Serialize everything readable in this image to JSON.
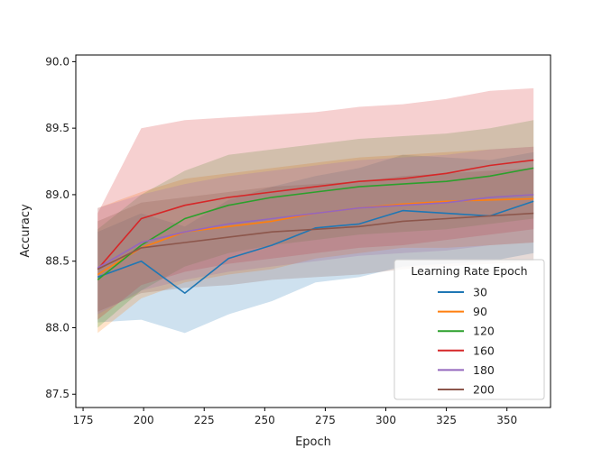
{
  "chart_data": {
    "type": "line",
    "xlabel": "Epoch",
    "ylabel": "Accuracy",
    "xlim": [
      172,
      368
    ],
    "ylim": [
      87.4,
      90.05
    ],
    "xticks": [
      "175",
      "200",
      "225",
      "250",
      "275",
      "300",
      "325",
      "350"
    ],
    "yticks": [
      "87.5",
      "88.0",
      "88.5",
      "89.0",
      "89.5",
      "90.0"
    ],
    "legend": {
      "title": "Learning Rate Epoch",
      "position": "lower-right"
    },
    "x": [
      181,
      199,
      217,
      235,
      253,
      271,
      289,
      307,
      325,
      343,
      361
    ],
    "series": [
      {
        "name": "30",
        "color": "#1f77b4",
        "band_color": "#1f77b4",
        "values": [
          88.38,
          88.5,
          88.26,
          88.52,
          88.62,
          88.75,
          88.78,
          88.88,
          88.86,
          88.84,
          88.95
        ],
        "lower": [
          88.04,
          88.06,
          87.96,
          88.1,
          88.2,
          88.34,
          88.38,
          88.46,
          88.48,
          88.5,
          88.56
        ],
        "upper": [
          88.72,
          88.86,
          88.76,
          88.96,
          89.06,
          89.14,
          89.2,
          89.3,
          89.28,
          89.26,
          89.32
        ]
      },
      {
        "name": "90",
        "color": "#ff7f0e",
        "band_color": "#ff7f0e",
        "values": [
          88.4,
          88.6,
          88.72,
          88.76,
          88.8,
          88.86,
          88.9,
          88.93,
          88.95,
          88.96,
          88.97
        ],
        "lower": [
          87.96,
          88.22,
          88.34,
          88.4,
          88.44,
          88.52,
          88.56,
          88.6,
          88.6,
          88.62,
          88.64
        ],
        "upper": [
          88.9,
          89.02,
          89.12,
          89.16,
          89.2,
          89.24,
          89.28,
          89.3,
          89.32,
          89.34,
          89.36
        ]
      },
      {
        "name": "120",
        "color": "#2ca02c",
        "band_color": "#2ca02c",
        "values": [
          88.36,
          88.62,
          88.82,
          88.92,
          88.98,
          89.02,
          89.06,
          89.08,
          89.1,
          89.14,
          89.2
        ],
        "lower": [
          88.0,
          88.28,
          88.46,
          88.56,
          88.62,
          88.66,
          88.7,
          88.72,
          88.74,
          88.78,
          88.82
        ],
        "upper": [
          88.74,
          89.0,
          89.18,
          89.3,
          89.34,
          89.38,
          89.42,
          89.44,
          89.46,
          89.5,
          89.56
        ]
      },
      {
        "name": "160",
        "color": "#d62728",
        "band_color": "#d62728",
        "values": [
          88.44,
          88.82,
          88.92,
          88.98,
          89.02,
          89.06,
          89.1,
          89.12,
          89.16,
          89.22,
          89.26
        ],
        "lower": [
          88.06,
          88.32,
          88.42,
          88.48,
          88.52,
          88.56,
          88.6,
          88.62,
          88.66,
          88.7,
          88.74
        ],
        "upper": [
          88.86,
          89.5,
          89.56,
          89.58,
          89.6,
          89.62,
          89.66,
          89.68,
          89.72,
          89.78,
          89.8
        ]
      },
      {
        "name": "180",
        "color": "#9467bd",
        "band_color": "#9467bd",
        "values": [
          88.45,
          88.64,
          88.72,
          88.78,
          88.82,
          88.86,
          88.9,
          88.92,
          88.94,
          88.98,
          89.0
        ],
        "lower": [
          88.1,
          88.28,
          88.36,
          88.42,
          88.46,
          88.5,
          88.54,
          88.56,
          88.58,
          88.62,
          88.64
        ],
        "upper": [
          88.9,
          89.0,
          89.08,
          89.14,
          89.18,
          89.22,
          89.26,
          89.28,
          89.3,
          89.34,
          89.36
        ]
      },
      {
        "name": "200",
        "color": "#8c564b",
        "band_color": "#8c564b",
        "values": [
          88.44,
          88.6,
          88.64,
          88.68,
          88.72,
          88.74,
          88.76,
          88.8,
          88.82,
          88.84,
          88.86
        ],
        "lower": [
          88.12,
          88.26,
          88.3,
          88.32,
          88.36,
          88.38,
          88.4,
          88.44,
          88.46,
          88.48,
          88.5
        ],
        "upper": [
          88.8,
          88.94,
          88.98,
          89.02,
          89.06,
          89.08,
          89.1,
          89.14,
          89.16,
          89.18,
          89.2
        ]
      }
    ]
  }
}
